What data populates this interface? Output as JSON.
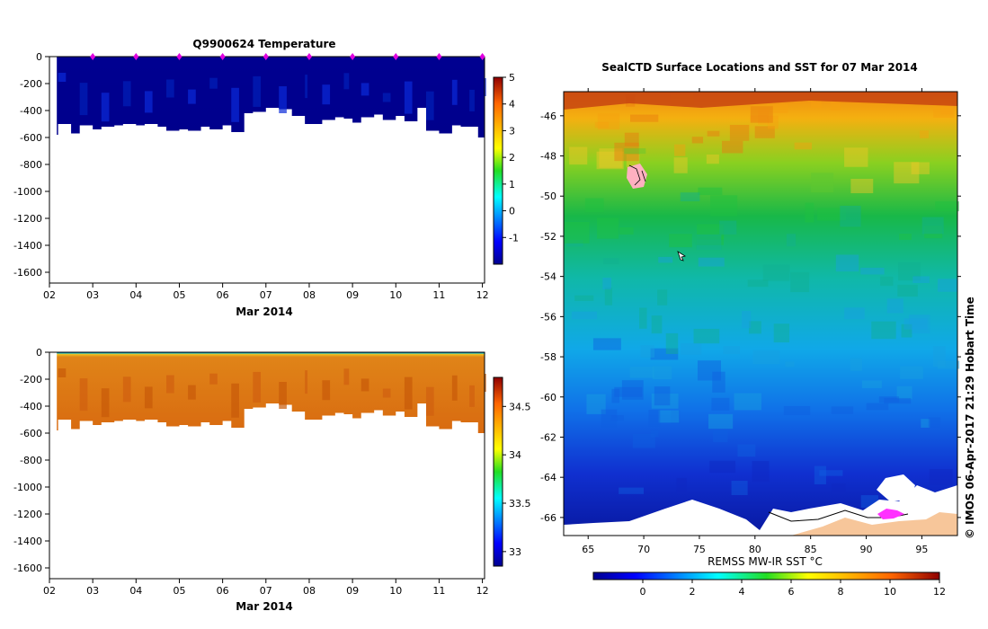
{
  "chart_data": [
    {
      "type": "heatmap",
      "title": "Q9900624  Temperature",
      "xlabel": "Mar 2014",
      "ylabel": "",
      "x_ticks": [
        "02",
        "03",
        "04",
        "05",
        "06",
        "07",
        "08",
        "09",
        "10",
        "11",
        "12"
      ],
      "x_range": [
        2,
        12.05
      ],
      "y_ticks": [
        0,
        -200,
        -400,
        -600,
        -800,
        -1000,
        -1200,
        -1400,
        -1600
      ],
      "y_range": [
        0,
        -1680
      ],
      "colorbar": {
        "ticks": [
          5,
          4,
          3,
          2,
          1,
          0,
          -1
        ],
        "range": [
          -2,
          5
        ]
      },
      "profile_markers": [
        3,
        4,
        5,
        6,
        7,
        8,
        9,
        10,
        11,
        12
      ],
      "profile_depths": [
        {
          "x": 2.2,
          "depth": 580
        },
        {
          "x": 2.5,
          "depth": 500
        },
        {
          "x": 2.7,
          "depth": 570
        },
        {
          "x": 3.0,
          "depth": 510
        },
        {
          "x": 3.2,
          "depth": 540
        },
        {
          "x": 3.5,
          "depth": 520
        },
        {
          "x": 3.7,
          "depth": 510
        },
        {
          "x": 4.0,
          "depth": 500
        },
        {
          "x": 4.2,
          "depth": 510
        },
        {
          "x": 4.5,
          "depth": 500
        },
        {
          "x": 4.7,
          "depth": 520
        },
        {
          "x": 5.0,
          "depth": 550
        },
        {
          "x": 5.2,
          "depth": 540
        },
        {
          "x": 5.5,
          "depth": 550
        },
        {
          "x": 5.7,
          "depth": 520
        },
        {
          "x": 6.0,
          "depth": 540
        },
        {
          "x": 6.2,
          "depth": 510
        },
        {
          "x": 6.5,
          "depth": 560
        },
        {
          "x": 6.7,
          "depth": 420
        },
        {
          "x": 7.0,
          "depth": 410
        },
        {
          "x": 7.3,
          "depth": 380
        },
        {
          "x": 7.6,
          "depth": 390
        },
        {
          "x": 7.9,
          "depth": 440
        },
        {
          "x": 8.0,
          "depth": 500
        },
        {
          "x": 8.3,
          "depth": 500
        },
        {
          "x": 8.6,
          "depth": 470
        },
        {
          "x": 8.8,
          "depth": 450
        },
        {
          "x": 9.0,
          "depth": 460
        },
        {
          "x": 9.2,
          "depth": 490
        },
        {
          "x": 9.5,
          "depth": 450
        },
        {
          "x": 9.7,
          "depth": 430
        },
        {
          "x": 10.0,
          "depth": 470
        },
        {
          "x": 10.2,
          "depth": 440
        },
        {
          "x": 10.5,
          "depth": 480
        },
        {
          "x": 10.7,
          "depth": 380
        },
        {
          "x": 11.0,
          "depth": 550
        },
        {
          "x": 11.3,
          "depth": 570
        },
        {
          "x": 11.5,
          "depth": 510
        },
        {
          "x": 11.7,
          "depth": 520
        },
        {
          "x": 11.9,
          "depth": 520
        },
        {
          "x": 12.05,
          "depth": 600
        }
      ]
    },
    {
      "type": "heatmap",
      "title": "",
      "xlabel": "Mar 2014",
      "ylabel": "",
      "x_ticks": [
        "02",
        "03",
        "04",
        "05",
        "06",
        "07",
        "08",
        "09",
        "10",
        "11",
        "12"
      ],
      "x_range": [
        2,
        12.05
      ],
      "y_ticks": [
        0,
        -200,
        -400,
        -600,
        -800,
        -1000,
        -1200,
        -1400,
        -1600
      ],
      "y_range": [
        0,
        -1680
      ],
      "colorbar": {
        "ticks": [
          34.5,
          34,
          33.5,
          33
        ],
        "range": [
          32.85,
          34.8
        ]
      }
    },
    {
      "type": "heatmap",
      "title": "SealCTD Surface Locations and SST for 07 Mar 2014",
      "xlabel": "REMSS MW-IR SST °C",
      "ylabel": "",
      "x_ticks": [
        65,
        70,
        75,
        80,
        85,
        90,
        95
      ],
      "x_range": [
        62.8,
        98.2
      ],
      "y_ticks": [
        -46,
        -48,
        -50,
        -52,
        -54,
        -56,
        -58,
        -60,
        -62,
        -64,
        -66
      ],
      "y_range": [
        -44.8,
        -66.9
      ],
      "colorbar": {
        "ticks": [
          0,
          2,
          4,
          6,
          8,
          10,
          12
        ],
        "range": [
          -2,
          12
        ]
      },
      "credit": "© IMOS 06-Apr-2017 21:29 Hobart Time"
    }
  ]
}
